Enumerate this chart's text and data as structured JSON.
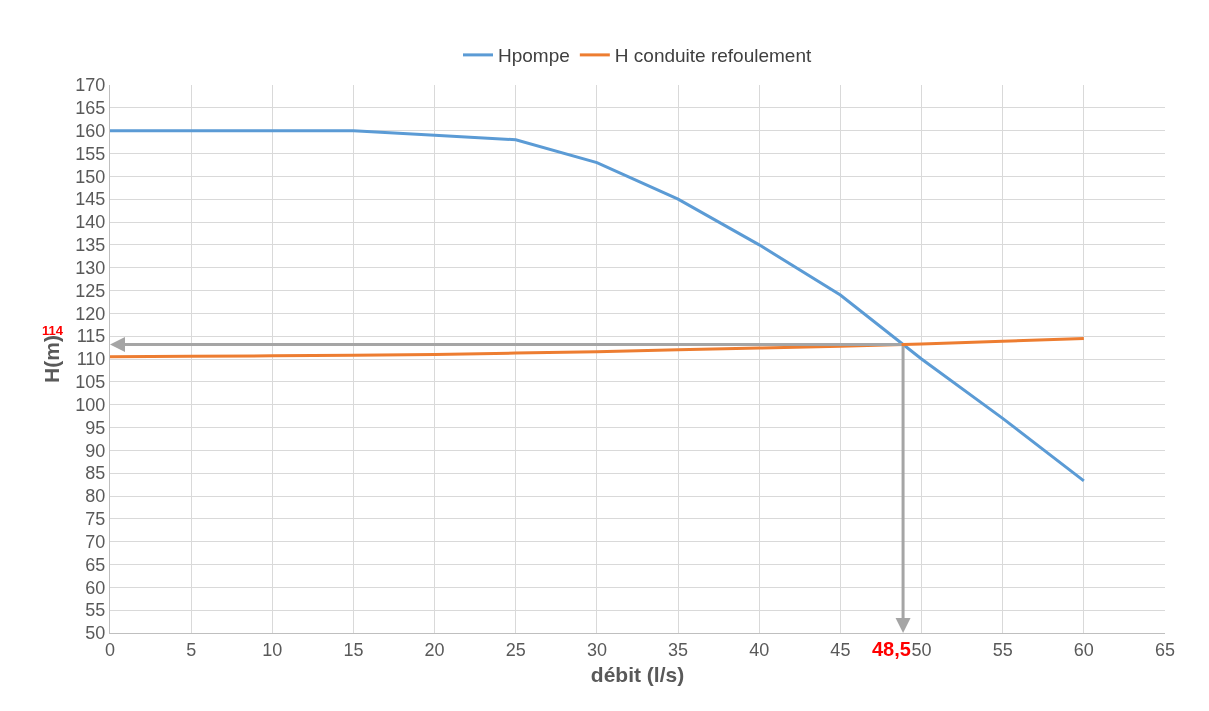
{
  "chart_data": {
    "type": "line",
    "xlabel": "débit (l/s)",
    "ylabel": "H(m)",
    "x": [
      0,
      5,
      10,
      15,
      20,
      25,
      30,
      35,
      40,
      45,
      50,
      55,
      60
    ],
    "series": [
      {
        "name": "Hpompe",
        "color": "#5b9bd5",
        "values": [
          160,
          160,
          160,
          160,
          159,
          158,
          153,
          145,
          135,
          124,
          110,
          97,
          83.3
        ]
      },
      {
        "name": "H conduite refoulement",
        "color": "#ed7d31",
        "values": [
          110.5,
          110.6,
          110.7,
          110.8,
          111,
          111.3,
          111.6,
          112,
          112.4,
          112.8,
          113.3,
          113.9,
          114.5
        ]
      }
    ],
    "xlim": [
      0,
      65
    ],
    "xticks": [
      0,
      5,
      10,
      15,
      20,
      25,
      30,
      35,
      40,
      45,
      50,
      55,
      60,
      65
    ],
    "ylim": [
      50,
      170
    ],
    "yticks": [
      50,
      55,
      60,
      65,
      70,
      75,
      80,
      85,
      90,
      95,
      100,
      105,
      110,
      115,
      120,
      125,
      130,
      135,
      140,
      145,
      150,
      155,
      160,
      165,
      170
    ],
    "annotations": [
      "114",
      "48,5"
    ],
    "grid": true,
    "legend": "top",
    "marker": "none",
    "line_style": "solid"
  }
}
